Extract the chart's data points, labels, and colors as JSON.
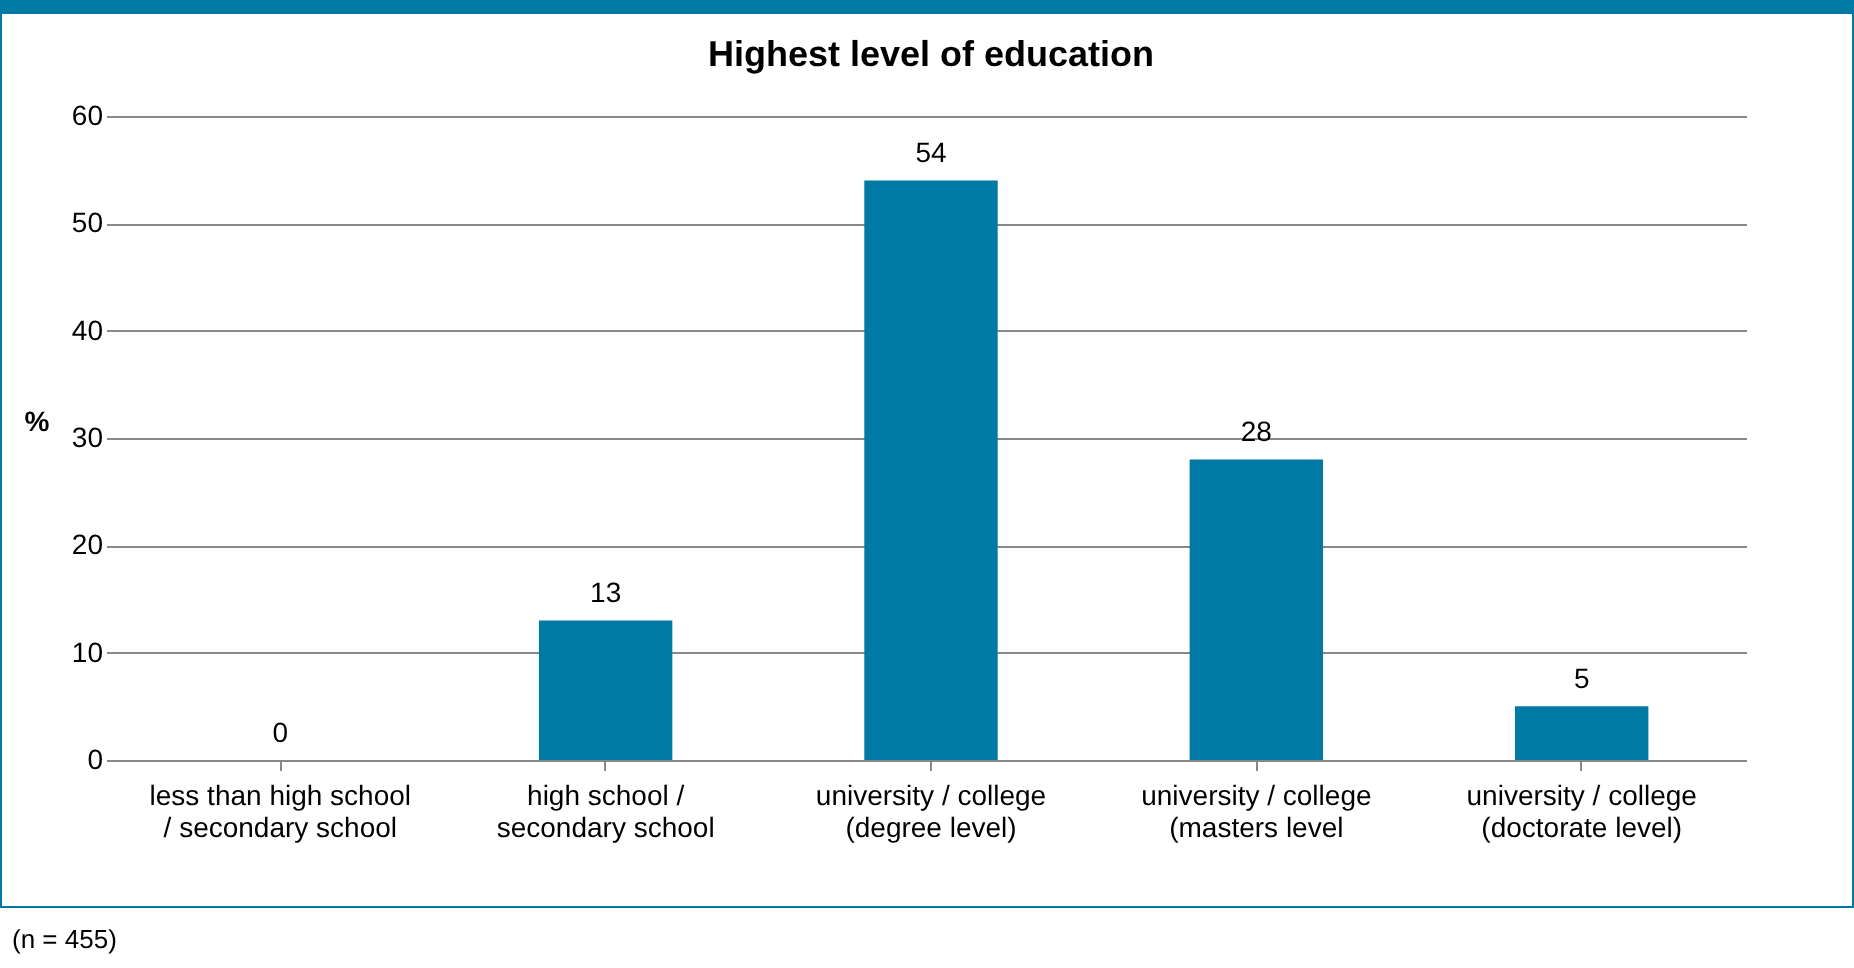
{
  "chart_data": {
    "type": "bar",
    "title": "Highest level of education",
    "ylabel": "%",
    "categories": [
      "less than high school / secondary school",
      "high school / secondary school",
      "university / college (degree level)",
      "university / college (masters level",
      "university / college (doctorate level)"
    ],
    "values": [
      0,
      13,
      54,
      28,
      5
    ],
    "color": "#0079a5",
    "ylim": [
      0,
      60
    ],
    "yticks": [
      0,
      10,
      20,
      30,
      40,
      50,
      60
    ],
    "grid": "y",
    "data_labels": true,
    "annotations": [
      "(n = 455)"
    ]
  }
}
